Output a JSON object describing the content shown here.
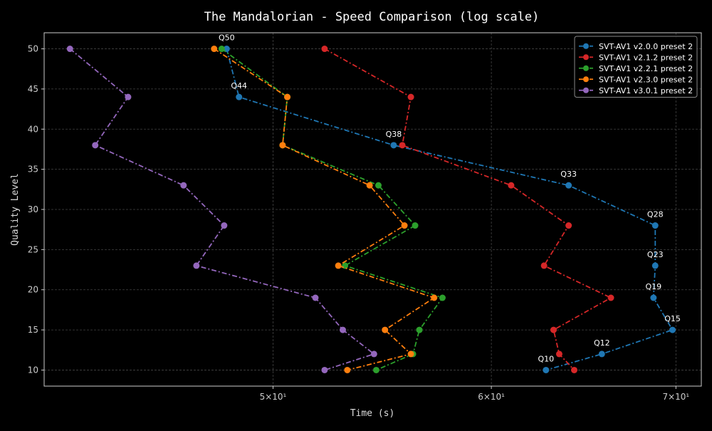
{
  "chart_data": {
    "type": "line",
    "title": "The Mandalorian - Speed Comparison (log scale)",
    "xlabel": "Time (s)",
    "ylabel": "Quality Level",
    "xscale": "log",
    "xlim": [
      41.3,
      71.5
    ],
    "ylim": [
      8,
      52
    ],
    "xticks": [
      {
        "value": 50,
        "label": "5×10¹"
      },
      {
        "value": 60,
        "label": "6×10¹"
      },
      {
        "value": 70,
        "label": "7×10¹"
      }
    ],
    "yticks": [
      10,
      15,
      20,
      25,
      30,
      35,
      40,
      45,
      50
    ],
    "grid": true,
    "legend_position": "top-right",
    "series": [
      {
        "name": "SVT-AV1 v2.0.0 preset 2",
        "color": "#1f77b4",
        "points": [
          {
            "q": 50,
            "t": 48.1
          },
          {
            "q": 44,
            "t": 48.6
          },
          {
            "q": 38,
            "t": 55.3
          },
          {
            "q": 33,
            "t": 64.0
          },
          {
            "q": 28,
            "t": 68.8
          },
          {
            "q": 23,
            "t": 68.8
          },
          {
            "q": 19,
            "t": 68.7
          },
          {
            "q": 15,
            "t": 69.8
          },
          {
            "q": 12,
            "t": 65.8
          },
          {
            "q": 10,
            "t": 62.8
          }
        ]
      },
      {
        "name": "SVT-AV1 v2.1.2 preset 2",
        "color": "#d62728",
        "points": [
          {
            "q": 50,
            "t": 52.2
          },
          {
            "q": 44,
            "t": 56.1
          },
          {
            "q": 38,
            "t": 55.7
          },
          {
            "q": 33,
            "t": 61.0
          },
          {
            "q": 28,
            "t": 64.0
          },
          {
            "q": 23,
            "t": 62.7
          },
          {
            "q": 19,
            "t": 66.3
          },
          {
            "q": 15,
            "t": 63.2
          },
          {
            "q": 12,
            "t": 63.5
          },
          {
            "q": 10,
            "t": 64.3
          }
        ]
      },
      {
        "name": "SVT-AV1 v2.2.1 preset 2",
        "color": "#2ca02c",
        "points": [
          {
            "q": 50,
            "t": 47.9
          },
          {
            "q": 44,
            "t": 50.6
          },
          {
            "q": 38,
            "t": 50.4
          },
          {
            "q": 33,
            "t": 54.6
          },
          {
            "q": 28,
            "t": 56.3
          },
          {
            "q": 23,
            "t": 53.1
          },
          {
            "q": 19,
            "t": 57.6
          },
          {
            "q": 15,
            "t": 56.5
          },
          {
            "q": 12,
            "t": 56.2
          },
          {
            "q": 10,
            "t": 54.5
          }
        ]
      },
      {
        "name": "SVT-AV1 v2.3.0 preset 2",
        "color": "#ff7f0e",
        "points": [
          {
            "q": 50,
            "t": 47.6
          },
          {
            "q": 44,
            "t": 50.6
          },
          {
            "q": 38,
            "t": 50.4
          },
          {
            "q": 33,
            "t": 54.2
          },
          {
            "q": 28,
            "t": 55.8
          },
          {
            "q": 23,
            "t": 52.8
          },
          {
            "q": 19,
            "t": 57.2
          },
          {
            "q": 15,
            "t": 54.9
          },
          {
            "q": 12,
            "t": 56.1
          },
          {
            "q": 10,
            "t": 53.2
          }
        ]
      },
      {
        "name": "SVT-AV1 v3.0.1 preset 2",
        "color": "#9467bd",
        "points": [
          {
            "q": 50,
            "t": 42.2
          },
          {
            "q": 44,
            "t": 44.3
          },
          {
            "q": 38,
            "t": 43.1
          },
          {
            "q": 33,
            "t": 46.4
          },
          {
            "q": 28,
            "t": 48.0
          },
          {
            "q": 23,
            "t": 46.9
          },
          {
            "q": 19,
            "t": 51.8
          },
          {
            "q": 15,
            "t": 53.0
          },
          {
            "q": 12,
            "t": 54.4
          },
          {
            "q": 10,
            "t": 52.2
          }
        ]
      }
    ],
    "annotations": [
      {
        "text": "Q50",
        "series": 0,
        "q": 50
      },
      {
        "text": "Q44",
        "series": 0,
        "q": 44
      },
      {
        "text": "Q38",
        "series": 0,
        "q": 38
      },
      {
        "text": "Q33",
        "series": 0,
        "q": 33
      },
      {
        "text": "Q28",
        "series": 0,
        "q": 28
      },
      {
        "text": "Q23",
        "series": 0,
        "q": 23
      },
      {
        "text": "Q19",
        "series": 0,
        "q": 19
      },
      {
        "text": "Q15",
        "series": 0,
        "q": 15
      },
      {
        "text": "Q12",
        "series": 0,
        "q": 12
      },
      {
        "text": "Q10",
        "series": 0,
        "q": 10
      }
    ]
  }
}
